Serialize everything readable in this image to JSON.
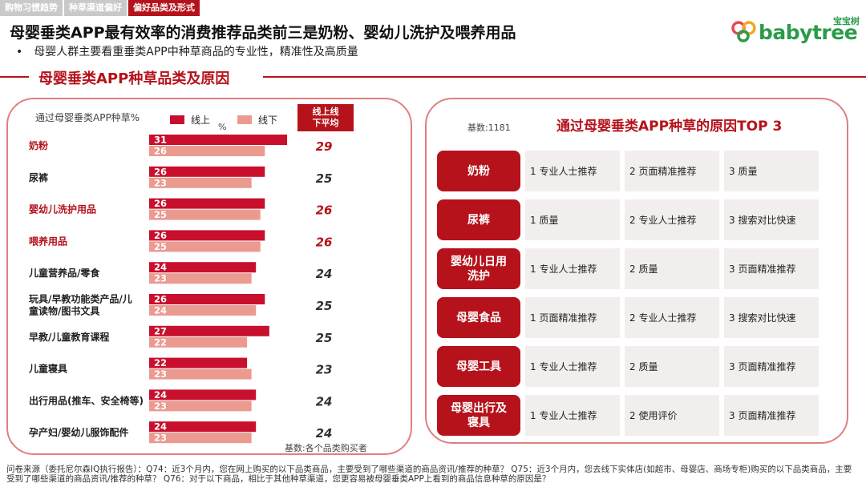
{
  "tabs": [
    {
      "label": "购物习惯趋势",
      "active": false
    },
    {
      "label": "种草渠道偏好",
      "active": false
    },
    {
      "label": "偏好品类及形式",
      "active": true
    }
  ],
  "title": "母婴垂类APP最有效率的消费推荐品类前三是奶粉、婴幼儿洗护及喂养用品",
  "subtitle": "母婴人群主要看重垂类APP中种草商品的专业性，精准性及高质量",
  "bullet": "•",
  "logo": {
    "cn": "宝宝树",
    "en": "babytree"
  },
  "section_title": "母婴垂类APP种草品类及原因",
  "colors": {
    "online": "#c8102e",
    "offline": "#eb9a8f",
    "accent": "#b5121b"
  },
  "chart_data": {
    "type": "bar",
    "ylabel": "通过母婴垂类APP种草%",
    "unit": "%",
    "categories": [
      "奶粉",
      "尿裤",
      "婴幼儿洗护用品",
      "喂养用品",
      "儿童营养品/零食",
      "玩具/早教功能类产品/儿童读物/图书文具",
      "早教/儿童教育课程",
      "儿童寝具",
      "出行用品(推车、安全椅等)",
      "孕产妇/婴幼儿服饰配件"
    ],
    "category_lines": [
      [
        "奶粉"
      ],
      [
        "尿裤"
      ],
      [
        "婴幼儿洗护用品"
      ],
      [
        "喂养用品"
      ],
      [
        "儿童营养品/零食"
      ],
      [
        "玩具/早教功能类产品/儿",
        "童读物/图书文具"
      ],
      [
        "早教/儿童教育课程"
      ],
      [
        "儿童寝具"
      ],
      [
        "出行用品(推车、安全椅等)"
      ],
      [
        "孕产妇/婴幼儿服饰配件"
      ]
    ],
    "highlight": [
      true,
      false,
      true,
      true,
      false,
      false,
      false,
      false,
      false,
      false
    ],
    "series": [
      {
        "name": "线上",
        "values": [
          31,
          26,
          26,
          26,
          24,
          26,
          27,
          22,
          24,
          24
        ]
      },
      {
        "name": "线下",
        "values": [
          26,
          23,
          25,
          25,
          23,
          24,
          22,
          23,
          23,
          23
        ]
      }
    ],
    "average_header": "线上线下平均",
    "average": [
      29,
      25,
      26,
      26,
      24,
      25,
      25,
      23,
      24,
      24
    ],
    "base_note": "基数:各个品类购买者"
  },
  "reasons": {
    "base": "基数:1181",
    "title": "通过母婴垂类APP种草的原因TOP 3",
    "rows": [
      {
        "category": "奶粉",
        "items": [
          "1 专业人士推荐",
          "2 页面精准推荐",
          "3 质量"
        ]
      },
      {
        "category": "尿裤",
        "items": [
          "1 质量",
          "2 专业人士推荐",
          "3 搜索对比快速"
        ]
      },
      {
        "category": "婴幼儿日用洗护",
        "items": [
          "1 专业人士推荐",
          "2 质量",
          "3 页面精准推荐"
        ]
      },
      {
        "category": "母婴食品",
        "items": [
          "1 页面精准推荐",
          "2 专业人士推荐",
          "3 搜索对比快速"
        ]
      },
      {
        "category": "母婴工具",
        "items": [
          "1 专业人士推荐",
          "2 质量",
          "3 页面精准推荐"
        ]
      },
      {
        "category": "母婴出行及寝具",
        "items": [
          "1 专业人士推荐",
          "2 使用评价",
          "3 页面精准推荐"
        ]
      }
    ]
  },
  "footnote": "问卷来源（委托尼尔森IQ执行报告）：Q74：近3个月内，您在网上购买的以下品类商品，主要受到了哪些渠道的商品资讯/推荐的种草？ Q75：近3个月内，您去线下实体店(如超市、母婴店、商场专柜)购买的以下品类商品，主要受到了哪些渠道的商品资讯/推荐的种草？ Q76：对于以下商品，相比于其他种草渠道，您更容易被母婴垂类APP上看到的商品信息种草的原因是？"
}
